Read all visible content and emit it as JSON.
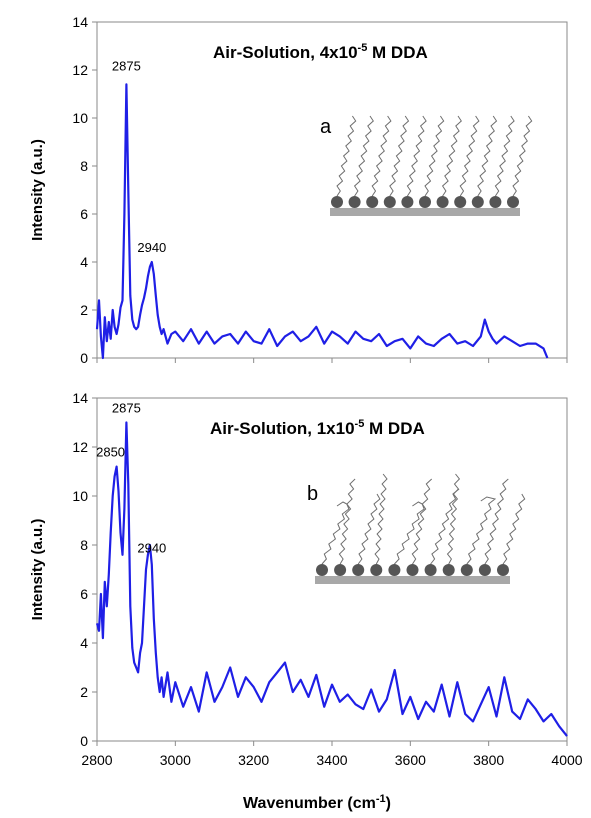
{
  "chart_data": [
    {
      "type": "line",
      "panel": "a",
      "title": "Air-Solution, 4x10",
      "title_sup": "-5",
      "title_rest": " M DDA",
      "ylabel": "Intensity (a.u.)",
      "xlabel": "",
      "xlim": [
        2800,
        4000
      ],
      "ylim": [
        0,
        14
      ],
      "y_ticks": [
        "0",
        "2",
        "4",
        "6",
        "8",
        "10",
        "12",
        "14"
      ],
      "x_ticks": [],
      "grid": false,
      "line_color": "#1f1fe6",
      "annotations": [
        "2875",
        "2940"
      ],
      "inset_label": "a",
      "inset_chain_order": "ordered",
      "series": [
        {
          "x": [
            2800,
            2805,
            2810,
            2815,
            2820,
            2825,
            2830,
            2835,
            2840,
            2845,
            2850,
            2855,
            2860,
            2865,
            2870,
            2875,
            2880,
            2885,
            2890,
            2895,
            2900,
            2905,
            2910,
            2915,
            2920,
            2925,
            2930,
            2935,
            2940,
            2945,
            2950,
            2955,
            2960,
            2965,
            2970,
            2980,
            2990,
            3000,
            3020,
            3040,
            3060,
            3080,
            3100,
            3120,
            3140,
            3160,
            3180,
            3200,
            3220,
            3240,
            3260,
            3280,
            3300,
            3320,
            3340,
            3360,
            3380,
            3400,
            3420,
            3440,
            3460,
            3480,
            3500,
            3520,
            3540,
            3560,
            3580,
            3600,
            3620,
            3640,
            3660,
            3680,
            3700,
            3720,
            3740,
            3760,
            3780,
            3790,
            3800,
            3810,
            3820,
            3840,
            3860,
            3880,
            3900,
            3920,
            3940,
            3950
          ],
          "y": [
            1.2,
            2.4,
            0.9,
            0.0,
            1.7,
            0.7,
            1.5,
            0.8,
            2.0,
            1.3,
            1.0,
            1.4,
            2.1,
            2.4,
            6.0,
            11.4,
            7.0,
            2.6,
            1.6,
            1.3,
            1.2,
            1.3,
            1.8,
            2.2,
            2.5,
            2.9,
            3.4,
            3.8,
            4.0,
            3.5,
            2.6,
            1.8,
            1.3,
            1.0,
            1.2,
            0.6,
            1.0,
            1.1,
            0.7,
            1.2,
            0.6,
            1.1,
            0.6,
            0.9,
            1.0,
            0.6,
            1.1,
            0.7,
            0.6,
            1.2,
            0.5,
            0.9,
            1.1,
            0.7,
            0.9,
            1.3,
            0.6,
            1.1,
            0.9,
            0.6,
            1.1,
            0.8,
            0.7,
            1.0,
            0.5,
            0.7,
            0.8,
            0.4,
            0.9,
            0.6,
            0.5,
            0.8,
            1.0,
            0.6,
            0.7,
            0.5,
            0.9,
            1.6,
            1.1,
            0.8,
            0.6,
            0.9,
            0.7,
            0.5,
            0.6,
            0.6,
            0.4,
            0.0
          ]
        }
      ]
    },
    {
      "type": "line",
      "panel": "b",
      "title": "Air-Solution, 1x10",
      "title_sup": "-5",
      "title_rest": " M DDA",
      "ylabel": "Intensity (a.u.)",
      "xlabel": "Wavenumber (cm",
      "xlabel_sup": "-1",
      "xlabel_rest": ")",
      "xlim": [
        2800,
        4000
      ],
      "ylim": [
        0,
        14
      ],
      "y_ticks": [
        "0",
        "2",
        "4",
        "6",
        "8",
        "10",
        "12",
        "14"
      ],
      "x_ticks": [
        "2800",
        "3000",
        "3200",
        "3400",
        "3600",
        "3800",
        "4000"
      ],
      "grid": false,
      "line_color": "#1f1fe6",
      "annotations": [
        "2850",
        "2875",
        "2940"
      ],
      "inset_label": "b",
      "inset_chain_order": "disordered",
      "series": [
        {
          "x": [
            2800,
            2805,
            2810,
            2815,
            2820,
            2825,
            2830,
            2835,
            2840,
            2845,
            2850,
            2855,
            2860,
            2865,
            2870,
            2875,
            2880,
            2885,
            2890,
            2895,
            2900,
            2905,
            2910,
            2915,
            2920,
            2925,
            2930,
            2935,
            2940,
            2945,
            2950,
            2955,
            2960,
            2965,
            2970,
            2980,
            2990,
            3000,
            3020,
            3040,
            3060,
            3080,
            3100,
            3120,
            3140,
            3160,
            3180,
            3200,
            3220,
            3240,
            3260,
            3280,
            3300,
            3320,
            3340,
            3360,
            3380,
            3400,
            3420,
            3440,
            3460,
            3480,
            3500,
            3520,
            3540,
            3560,
            3580,
            3600,
            3620,
            3640,
            3660,
            3680,
            3700,
            3720,
            3740,
            3760,
            3780,
            3800,
            3820,
            3840,
            3860,
            3880,
            3900,
            3920,
            3940,
            3960,
            3980,
            4000
          ],
          "y": [
            4.8,
            4.5,
            6.0,
            4.2,
            6.5,
            5.5,
            6.8,
            8.5,
            10.0,
            10.8,
            11.2,
            10.2,
            8.5,
            7.6,
            9.5,
            13.0,
            10.5,
            5.5,
            3.8,
            3.2,
            3.0,
            2.8,
            3.6,
            4.0,
            5.5,
            7.0,
            7.6,
            8.0,
            7.2,
            5.0,
            3.6,
            2.6,
            2.0,
            2.6,
            1.8,
            2.8,
            1.6,
            2.4,
            1.4,
            2.2,
            1.2,
            2.8,
            1.6,
            2.2,
            3.0,
            1.8,
            2.6,
            2.2,
            1.6,
            2.4,
            2.8,
            3.2,
            2.0,
            2.5,
            1.8,
            2.7,
            1.4,
            2.3,
            1.6,
            1.9,
            1.5,
            1.3,
            2.1,
            1.2,
            1.7,
            2.9,
            1.1,
            1.8,
            0.9,
            1.6,
            1.2,
            2.3,
            1.0,
            2.4,
            1.1,
            0.8,
            1.5,
            2.2,
            1.0,
            2.6,
            1.2,
            0.9,
            1.7,
            1.3,
            0.8,
            1.1,
            0.6,
            0.2
          ]
        }
      ]
    }
  ]
}
